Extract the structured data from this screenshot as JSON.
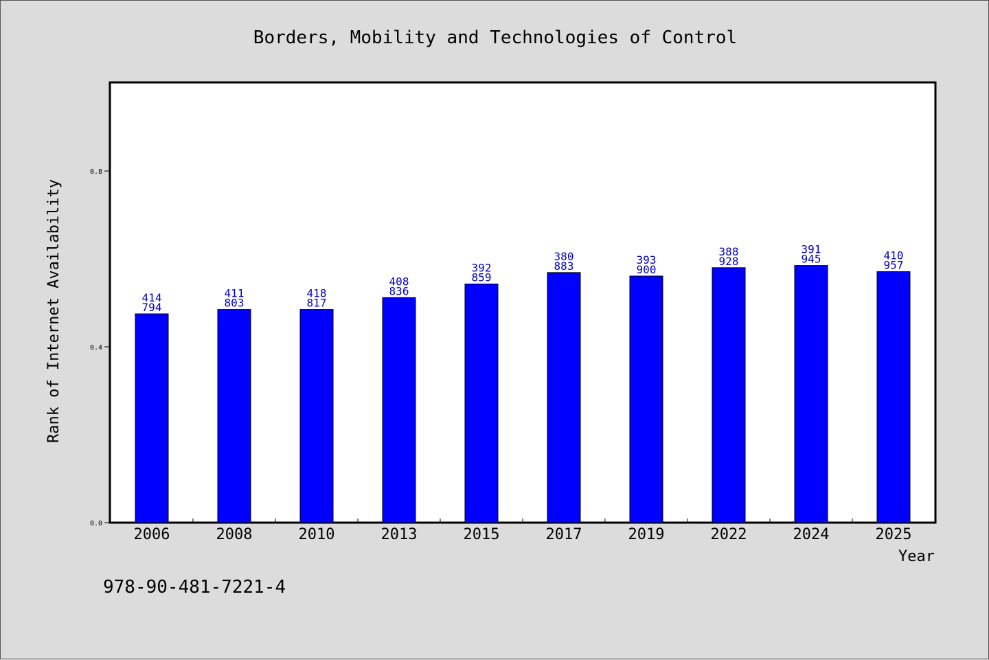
{
  "chart_data": {
    "type": "bar",
    "title": "Borders, Mobility and Technologies of Control",
    "xlabel": "Year",
    "ylabel": "Rank of Internet Availability",
    "ylim": [
      0.0,
      1.0
    ],
    "yticks": [
      0.0,
      0.4,
      0.8
    ],
    "ytick_labels": [
      "0.0",
      "0.4",
      "0.8"
    ],
    "grid": false,
    "categories": [
      "2006",
      "2008",
      "2010",
      "2013",
      "2015",
      "2017",
      "2019",
      "2022",
      "2024",
      "2025"
    ],
    "values": [
      0.475,
      0.485,
      0.485,
      0.512,
      0.543,
      0.569,
      0.561,
      0.58,
      0.585,
      0.571
    ],
    "label_top": [
      "414",
      "411",
      "418",
      "408",
      "392",
      "380",
      "393",
      "388",
      "391",
      "410"
    ],
    "label_bottom": [
      "794",
      "803",
      "817",
      "836",
      "859",
      "883",
      "900",
      "928",
      "945",
      "957"
    ],
    "bar_color": "#0000ff",
    "label_color": "#0000cc"
  },
  "footer": {
    "isbn": "978-90-481-7221-4"
  }
}
